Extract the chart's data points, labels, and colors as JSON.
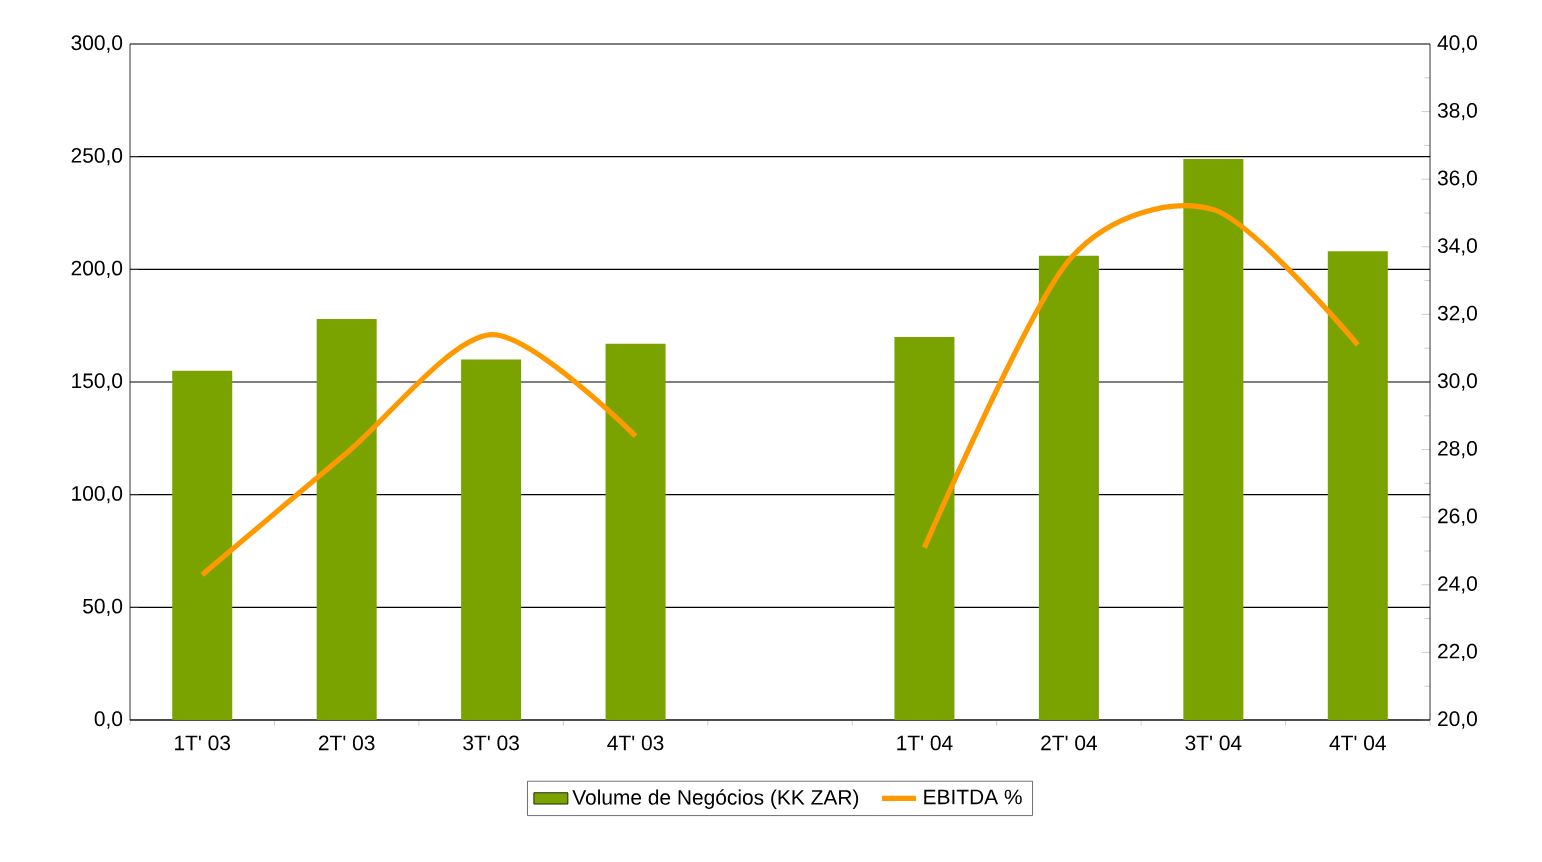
{
  "chart_data": {
    "type": "bar",
    "categories": [
      "1T' 03",
      "2T' 03",
      "3T' 03",
      "4T' 03",
      null,
      "1T' 04",
      "2T' 04",
      "3T' 04",
      "4T' 04"
    ],
    "series": [
      {
        "name": "Volume de Negócios (KK ZAR)",
        "color": "#7aa300",
        "values": [
          155,
          178,
          160,
          167,
          null,
          170,
          206,
          249,
          208
        ]
      },
      {
        "name": "EBITDA %",
        "type": "line",
        "axis": "y2",
        "color": "#ff9900",
        "values": [
          24.3,
          27.9,
          31.4,
          28.4,
          null,
          25.1,
          33.6,
          35.1,
          31.1
        ]
      }
    ],
    "ylim": [
      0,
      300
    ],
    "yticks": [
      {
        "value": 0,
        "label": "0,0"
      },
      {
        "value": 50,
        "label": "50,0"
      },
      {
        "value": 100,
        "label": "100,0"
      },
      {
        "value": 150,
        "label": "150,0"
      },
      {
        "value": 200,
        "label": "200,0"
      },
      {
        "value": 250,
        "label": "250,0"
      },
      {
        "value": 300,
        "label": "300,0"
      }
    ],
    "y2lim": [
      20,
      40
    ],
    "y2ticks": [
      {
        "value": 20,
        "label": "20,0"
      },
      {
        "value": 22,
        "label": "22,0"
      },
      {
        "value": 24,
        "label": "24,0"
      },
      {
        "value": 26,
        "label": "26,0"
      },
      {
        "value": 28,
        "label": "28,0"
      },
      {
        "value": 30,
        "label": "30,0"
      },
      {
        "value": 32,
        "label": "32,0"
      },
      {
        "value": 34,
        "label": "34,0"
      },
      {
        "value": 36,
        "label": "36,0"
      },
      {
        "value": 38,
        "label": "38,0"
      },
      {
        "value": 40,
        "label": "40,0"
      }
    ],
    "grid": "y",
    "legend": "bottom"
  }
}
